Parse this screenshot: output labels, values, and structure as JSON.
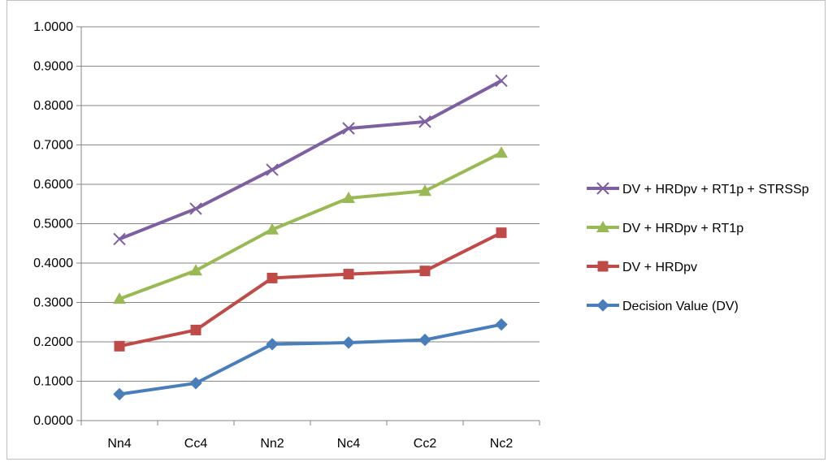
{
  "chart_data": {
    "type": "line",
    "title": "",
    "xlabel": "",
    "ylabel": "",
    "categories": [
      "Nn4",
      "Cc4",
      "Nn2",
      "Nc4",
      "Cc2",
      "Nc2"
    ],
    "ylim": [
      0,
      1
    ],
    "y_tick_labels": [
      "0.0000",
      "0.1000",
      "0.2000",
      "0.3000",
      "0.4000",
      "0.5000",
      "0.6000",
      "0.7000",
      "0.8000",
      "0.9000",
      "1.0000"
    ],
    "grid": "horizontal",
    "legend_position": "right",
    "series": [
      {
        "name": "Decision Value (DV)",
        "color": "#4a7ebb",
        "marker": "diamond",
        "values": [
          0.067,
          0.095,
          0.194,
          0.198,
          0.205,
          0.244
        ]
      },
      {
        "name": "DV + HRDpv",
        "color": "#be4b48",
        "marker": "square",
        "values": [
          0.189,
          0.23,
          0.362,
          0.372,
          0.38,
          0.477
        ]
      },
      {
        "name": "DV + HRDpv + RT1p",
        "color": "#98b954",
        "marker": "triangle",
        "values": [
          0.309,
          0.381,
          0.485,
          0.565,
          0.583,
          0.68
        ]
      },
      {
        "name": "DV + HRDpv + RT1p + STRSSp",
        "color": "#7d60a0",
        "marker": "cross",
        "values": [
          0.461,
          0.538,
          0.637,
          0.742,
          0.759,
          0.863
        ]
      }
    ],
    "legend_order": [
      "DV + HRDpv + RT1p + STRSSp",
      "DV + HRDpv + RT1p",
      "DV + HRDpv",
      "Decision Value (DV)"
    ]
  }
}
